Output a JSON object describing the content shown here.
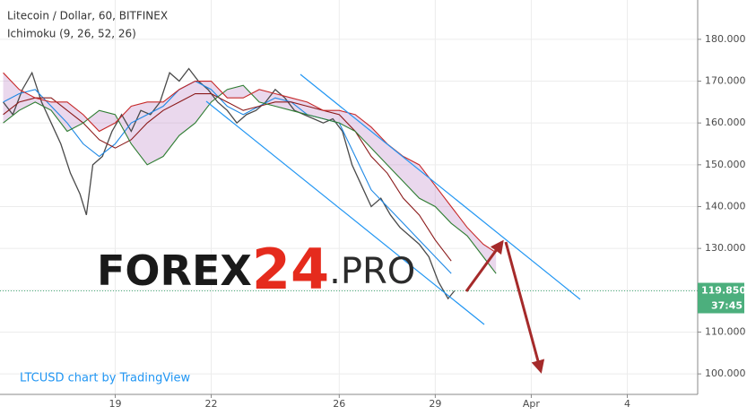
{
  "chart_data": {
    "type": "line",
    "title": "Litecoin / Dollar, 60, BITFINEX",
    "subtitle": "Ichimoku (9, 26, 52, 26)",
    "watermark_parts": [
      "FOREX",
      "24",
      ".PRO"
    ],
    "credit": "LTCUSD chart by TradingView",
    "xlim": [
      15.4,
      37.2
    ],
    "ylim": [
      95.1,
      189.4
    ],
    "xticks": [
      19,
      22,
      26,
      29,
      {
        "value": 32,
        "label": "Apr"
      },
      {
        "value": 35,
        "label": "4"
      }
    ],
    "yticks": [
      {
        "value": 100,
        "label": "100.000"
      },
      {
        "value": 110,
        "label": "110.000"
      },
      {
        "value": 120,
        "label": "120.000"
      },
      {
        "value": 130,
        "label": "130.000"
      },
      {
        "value": 140,
        "label": "140.000"
      },
      {
        "value": 150,
        "label": "150.000"
      },
      {
        "value": 160,
        "label": "160.000"
      },
      {
        "value": 170,
        "label": "170.000"
      },
      {
        "value": 180,
        "label": "180.000"
      }
    ],
    "grid": true,
    "last_price": {
      "value": 119.85,
      "label": "119.850"
    },
    "countdown": "37:45",
    "series": [
      {
        "color": "#4a4a4a",
        "x": [
          15.5,
          15.8,
          16.1,
          16.4,
          16.7,
          17.0,
          17.3,
          17.6,
          17.9,
          18.1,
          18.3,
          18.6,
          18.9,
          19.2,
          19.5,
          19.8,
          20.1,
          20.4,
          20.7,
          21.0,
          21.3,
          21.6,
          21.9,
          22.2,
          22.5,
          22.8,
          23.1,
          23.4,
          23.7,
          24.0,
          24.3,
          24.6,
          24.9,
          25.2,
          25.5,
          25.8,
          26.1,
          26.4,
          26.7,
          27.0,
          27.3,
          27.6,
          27.9,
          28.2,
          28.5,
          28.8,
          29.1,
          29.4,
          29.6
        ],
        "values": [
          165,
          162,
          168,
          172,
          165,
          160,
          155,
          148,
          143,
          138,
          150,
          152,
          158,
          162,
          158,
          163,
          162,
          165,
          172,
          170,
          173,
          170,
          168,
          165,
          163,
          160,
          162,
          163,
          165,
          168,
          166,
          163,
          162,
          161,
          160,
          161,
          158,
          150,
          145,
          140,
          142,
          138,
          135,
          133,
          131,
          128,
          122,
          118,
          119.85
        ]
      },
      {
        "color": "#1e88e5",
        "x": [
          15.5,
          16,
          16.5,
          17,
          17.5,
          18,
          18.5,
          19,
          19.5,
          20,
          20.5,
          21,
          21.5,
          22,
          22.5,
          23,
          23.5,
          24,
          24.5,
          25,
          25.5,
          26,
          26.5,
          27,
          27.5,
          28,
          28.5,
          29,
          29.5
        ],
        "values": [
          165,
          167,
          168,
          164,
          160,
          155,
          152,
          155,
          160,
          162,
          164,
          168,
          170,
          168,
          164,
          162,
          164,
          166,
          165,
          162,
          161,
          160,
          152,
          144,
          140,
          136,
          132,
          128,
          124
        ]
      },
      {
        "color": "#8b1a1a",
        "x": [
          15.5,
          16,
          16.5,
          17,
          17.5,
          18,
          18.5,
          19,
          19.5,
          20,
          20.5,
          21,
          21.5,
          22,
          22.5,
          23,
          23.5,
          24,
          24.5,
          25,
          25.5,
          26,
          26.5,
          27,
          27.5,
          28,
          28.5,
          29,
          29.5
        ],
        "values": [
          162,
          165,
          166,
          166,
          163,
          160,
          156,
          154,
          156,
          160,
          163,
          165,
          167,
          167,
          165,
          163,
          164,
          165,
          165,
          164,
          163,
          162,
          158,
          152,
          148,
          142,
          138,
          132,
          127
        ]
      },
      {
        "color": "#2e7d32",
        "x": [
          15.5,
          16,
          16.5,
          17,
          17.5,
          18,
          18.5,
          19,
          19.5,
          20,
          20.5,
          21,
          21.5,
          22,
          22.5,
          23,
          23.5,
          24,
          24.5,
          25,
          25.5,
          26,
          26.5,
          27,
          27.5,
          28,
          28.5,
          29,
          29.5,
          30,
          30.5,
          30.9
        ],
        "values": [
          160,
          163,
          165,
          163,
          158,
          160,
          163,
          162,
          155,
          150,
          152,
          157,
          160,
          165,
          168,
          169,
          165,
          164,
          163,
          162,
          161,
          160,
          158,
          154,
          150,
          146,
          142,
          140,
          136,
          133,
          128,
          124
        ]
      },
      {
        "color": "#c62828",
        "x": [
          15.5,
          16,
          16.5,
          17,
          17.5,
          18,
          18.5,
          19,
          19.5,
          20,
          20.5,
          21,
          21.5,
          22,
          22.5,
          23,
          23.5,
          24,
          24.5,
          25,
          25.5,
          26,
          26.5,
          27,
          27.5,
          28,
          28.5,
          29,
          29.5,
          30,
          30.5,
          30.9
        ],
        "values": [
          172,
          168,
          166,
          165,
          165,
          162,
          158,
          160,
          164,
          165,
          165,
          168,
          170,
          170,
          166,
          166,
          168,
          167,
          166,
          165,
          163,
          163,
          162,
          159,
          155,
          152,
          150,
          145,
          140,
          135,
          131,
          129
        ]
      }
    ]
  }
}
